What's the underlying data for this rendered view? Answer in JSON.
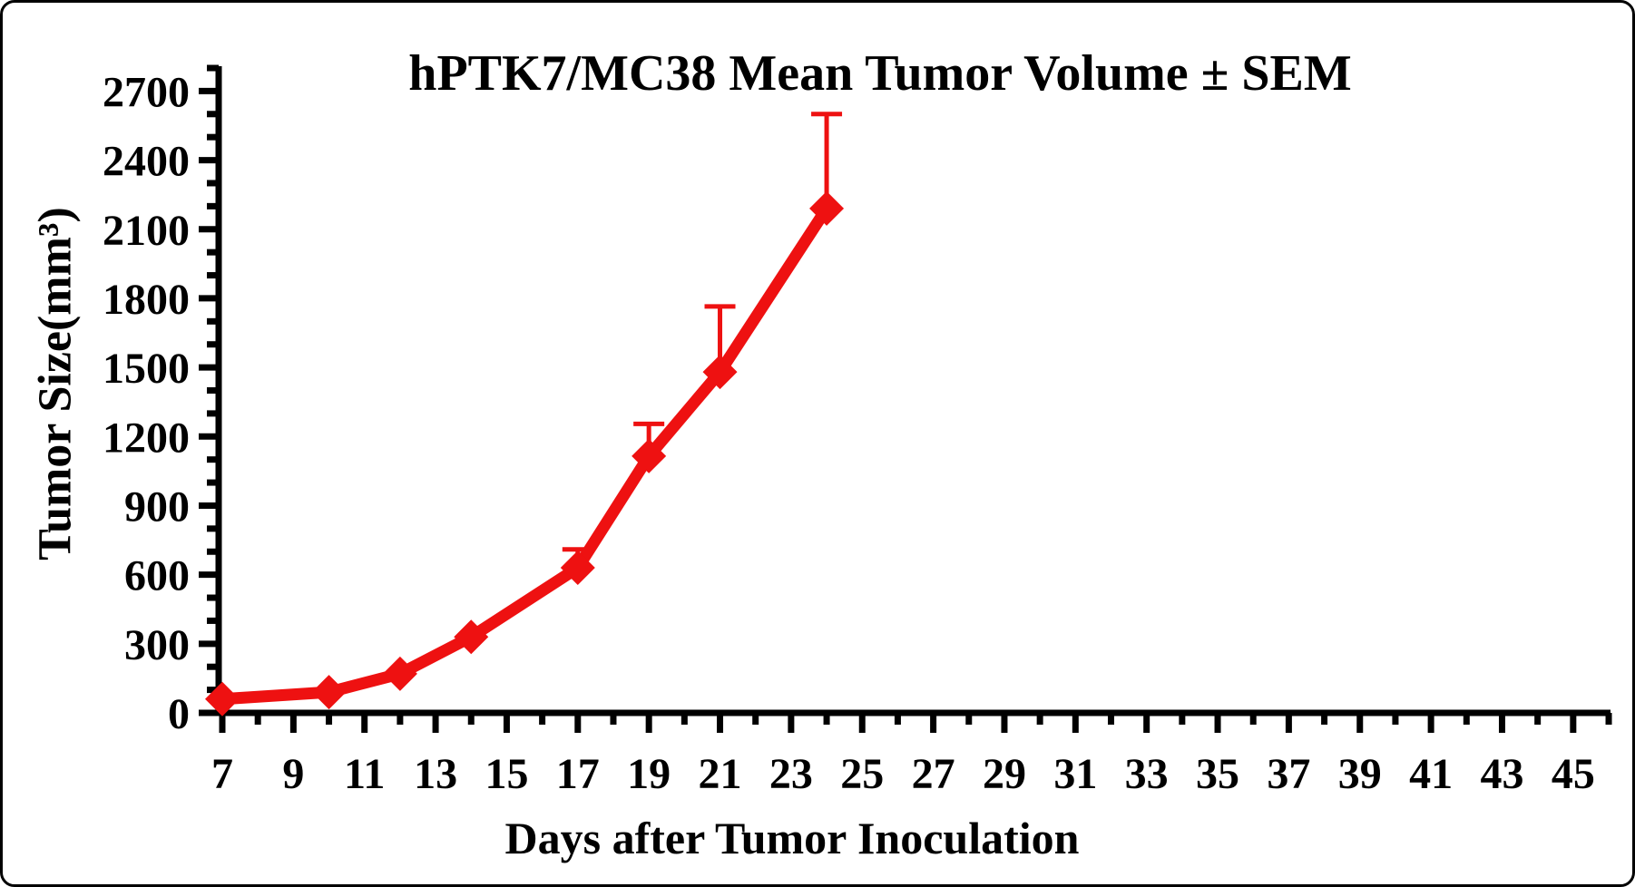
{
  "figure": {
    "background": "#ffffff",
    "border_color": "#000000"
  },
  "chart_data": {
    "type": "line",
    "title": "hPTK7/MC38 Mean Tumor Volume ± SEM",
    "xlabel": "Days after Tumor Inoculation",
    "ylabel": "Tumor Size(mm³)",
    "grid": false,
    "legend": false,
    "error_bars": "upper SEM",
    "series": [
      {
        "name": "hPTK7/MC38",
        "color": "#ee1111",
        "marker": "diamond",
        "x": [
          7,
          10,
          12,
          14,
          17,
          19,
          21,
          24
        ],
        "y": [
          60,
          90,
          170,
          330,
          630,
          1115,
          1480,
          2190
        ],
        "sem_upper": [
          null,
          null,
          null,
          null,
          80,
          140,
          285,
          410
        ]
      }
    ],
    "x_axis": {
      "min": 7,
      "max": 46,
      "tick_labels": [
        7,
        9,
        11,
        13,
        15,
        17,
        19,
        21,
        23,
        25,
        27,
        29,
        31,
        33,
        35,
        37,
        39,
        41,
        43,
        45
      ],
      "major_tick_step": 2,
      "minor_tick_step": 1
    },
    "y_axis": {
      "min": 0,
      "max": 2800,
      "tick_labels": [
        0,
        300,
        600,
        900,
        1200,
        1500,
        1800,
        2100,
        2400,
        2700
      ],
      "major_tick_step": 300,
      "minor_tick_step": 100
    },
    "axis_color": "#000000"
  }
}
